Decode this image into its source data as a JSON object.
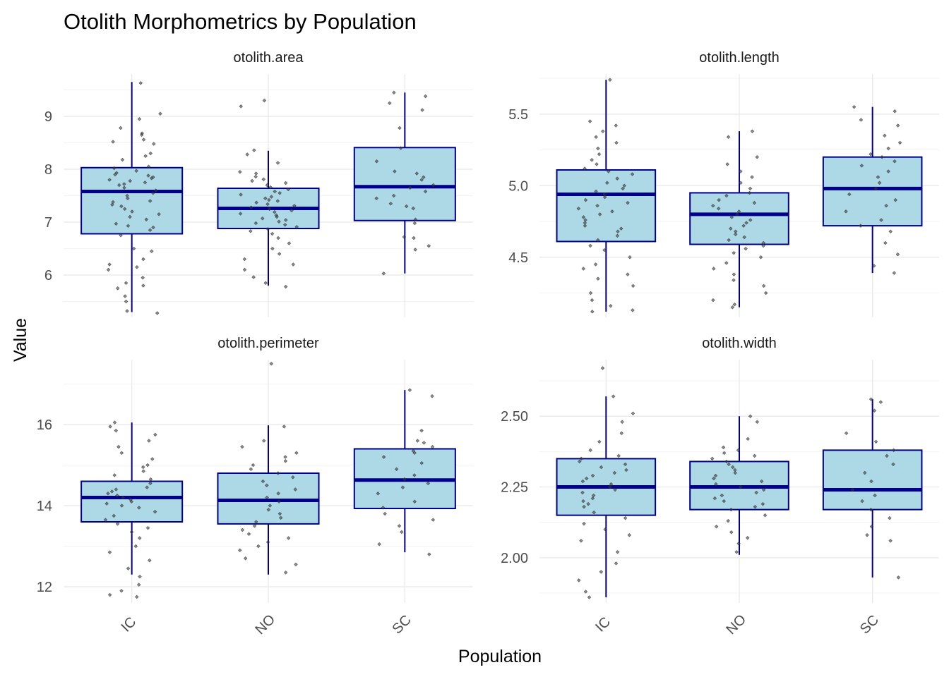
{
  "chart_data": {
    "type": "boxplot",
    "title": "Otolith Morphometrics by Population",
    "xlabel": "Population",
    "ylabel": "Value",
    "categories": [
      "IC",
      "NO",
      "SC"
    ],
    "grid": "on",
    "style": {
      "box_fill": "#add8e6",
      "box_stroke": "#00008b",
      "median_color": "#00008b",
      "point_color": "#333333",
      "grid_major": "#ebebeb",
      "grid_minor": "#f3f3f3"
    },
    "panels": [
      {
        "name": "otolith.area",
        "ylim": [
          5.2,
          9.8
        ],
        "yticks": [
          6,
          7,
          8,
          9
        ],
        "ytick_labels": [
          "6",
          "7",
          "8",
          "9"
        ],
        "boxes": [
          {
            "category": "IC",
            "min": 5.3,
            "q1": 6.78,
            "median": 7.58,
            "q3": 8.03,
            "max": 9.65
          },
          {
            "category": "NO",
            "min": 5.8,
            "q1": 6.88,
            "median": 7.26,
            "q3": 7.64,
            "max": 8.35
          },
          {
            "category": "SC",
            "min": 6.03,
            "q1": 7.03,
            "median": 7.67,
            "q3": 8.41,
            "max": 9.45
          }
        ],
        "points": {
          "IC": [
            9.63,
            8.78,
            8.95,
            9.05,
            8.68,
            8.65,
            8.52,
            8.48,
            8.56,
            8.3,
            8.25,
            8.18,
            8.05,
            8.02,
            7.97,
            7.93,
            7.9,
            7.88,
            7.85,
            7.83,
            7.8,
            7.78,
            7.75,
            7.72,
            7.7,
            7.65,
            7.6,
            7.55,
            7.5,
            7.45,
            7.4,
            7.38,
            7.33,
            7.3,
            7.25,
            7.2,
            7.15,
            7.1,
            7.05,
            6.97,
            6.93,
            6.9,
            6.85,
            6.75,
            6.5,
            6.45,
            6.3,
            6.2,
            6.15,
            6.1,
            5.95,
            5.85,
            5.8,
            5.75,
            5.6,
            5.5,
            5.32,
            5.28
          ],
          "NO": [
            9.3,
            9.19,
            8.36,
            8.28,
            8.12,
            7.95,
            7.92,
            7.86,
            7.81,
            7.78,
            7.74,
            7.7,
            7.66,
            7.62,
            7.58,
            7.55,
            7.52,
            7.48,
            7.45,
            7.42,
            7.4,
            7.37,
            7.34,
            7.31,
            7.28,
            7.25,
            7.22,
            7.19,
            7.16,
            7.13,
            7.1,
            7.07,
            7.04,
            7.01,
            6.98,
            6.95,
            6.91,
            6.87,
            6.83,
            6.78,
            6.7,
            6.6,
            6.5,
            6.4,
            6.3,
            6.2,
            6.1,
            5.96,
            5.85,
            5.78
          ],
          "SC": [
            9.45,
            9.38,
            9.25,
            9.12,
            8.78,
            8.4,
            8.15,
            7.96,
            7.92,
            7.85,
            7.8,
            7.7,
            7.65,
            7.58,
            7.5,
            7.45,
            7.35,
            7.3,
            7.26,
            7.05,
            6.98,
            6.72,
            6.7,
            6.55,
            6.48,
            6.03
          ]
        }
      },
      {
        "name": "otolith.length",
        "ylim": [
          4.08,
          5.78
        ],
        "yticks": [
          4.5,
          5.0,
          5.5
        ],
        "ytick_labels": [
          "4.5",
          "5.0",
          "5.5"
        ],
        "boxes": [
          {
            "category": "IC",
            "min": 4.12,
            "q1": 4.61,
            "median": 4.94,
            "q3": 5.11,
            "max": 5.74
          },
          {
            "category": "NO",
            "min": 4.15,
            "q1": 4.59,
            "median": 4.8,
            "q3": 4.95,
            "max": 5.38
          },
          {
            "category": "SC",
            "min": 4.39,
            "q1": 4.72,
            "median": 4.98,
            "q3": 5.2,
            "max": 5.55
          }
        ],
        "points": {
          "IC": [
            5.74,
            5.45,
            5.42,
            5.38,
            5.34,
            5.3,
            5.26,
            5.22,
            5.18,
            5.15,
            5.12,
            5.1,
            5.08,
            5.05,
            5.02,
            5.0,
            4.98,
            4.96,
            4.94,
            4.92,
            4.9,
            4.88,
            4.86,
            4.84,
            4.82,
            4.8,
            4.78,
            4.76,
            4.74,
            4.72,
            4.7,
            4.68,
            4.65,
            4.62,
            4.58,
            4.55,
            4.5,
            4.45,
            4.42,
            4.38,
            4.35,
            4.3,
            4.25,
            4.2,
            4.16,
            4.13,
            4.12
          ],
          "NO": [
            5.38,
            5.34,
            5.2,
            5.15,
            5.1,
            5.06,
            5.02,
            4.98,
            4.95,
            4.93,
            4.9,
            4.88,
            4.86,
            4.84,
            4.82,
            4.8,
            4.78,
            4.76,
            4.74,
            4.72,
            4.7,
            4.68,
            4.66,
            4.64,
            4.62,
            4.6,
            4.58,
            4.56,
            4.53,
            4.5,
            4.46,
            4.42,
            4.38,
            4.34,
            4.3,
            4.25,
            4.2,
            4.17,
            4.15
          ],
          "SC": [
            5.55,
            5.52,
            5.46,
            5.42,
            5.35,
            5.3,
            5.26,
            5.22,
            5.2,
            5.17,
            5.14,
            5.1,
            5.06,
            5.02,
            4.98,
            4.94,
            4.9,
            4.86,
            4.82,
            4.76,
            4.72,
            4.68,
            4.6,
            4.52,
            4.44,
            4.39
          ]
        }
      },
      {
        "name": "otolith.perimeter",
        "ylim": [
          11.6,
          17.6
        ],
        "yticks": [
          12,
          14,
          16
        ],
        "ytick_labels": [
          "12",
          "14",
          "16"
        ],
        "boxes": [
          {
            "category": "IC",
            "min": 12.3,
            "q1": 13.6,
            "median": 14.2,
            "q3": 14.6,
            "max": 16.05
          },
          {
            "category": "NO",
            "min": 12.3,
            "q1": 13.55,
            "median": 14.13,
            "q3": 14.8,
            "max": 15.98
          },
          {
            "category": "SC",
            "min": 12.85,
            "q1": 13.93,
            "median": 14.63,
            "q3": 15.4,
            "max": 16.85
          }
        ],
        "points": {
          "IC": [
            16.05,
            15.95,
            15.85,
            15.75,
            15.6,
            15.45,
            15.3,
            15.15,
            15.0,
            14.95,
            14.85,
            14.75,
            14.65,
            14.55,
            14.45,
            14.4,
            14.35,
            14.3,
            14.25,
            14.2,
            14.15,
            14.1,
            14.05,
            14.0,
            13.95,
            13.85,
            13.75,
            13.65,
            13.55,
            13.45,
            13.35,
            13.2,
            13.0,
            12.85,
            12.65,
            12.45,
            12.25,
            12.05,
            11.9,
            11.8,
            11.75
          ],
          "NO": [
            17.5,
            15.95,
            15.6,
            15.45,
            15.3,
            15.2,
            15.1,
            15.0,
            14.9,
            14.8,
            14.7,
            14.6,
            14.5,
            14.4,
            14.3,
            14.2,
            14.1,
            14.0,
            13.9,
            13.8,
            13.7,
            13.6,
            13.5,
            13.4,
            13.3,
            13.2,
            13.1,
            13.0,
            12.9,
            12.7,
            12.55,
            12.35
          ],
          "SC": [
            16.85,
            16.7,
            15.85,
            15.6,
            15.55,
            15.45,
            15.35,
            15.3,
            15.2,
            15.05,
            14.9,
            14.75,
            14.65,
            14.55,
            14.45,
            14.3,
            14.1,
            13.95,
            13.8,
            13.65,
            13.5,
            13.35,
            13.05,
            12.8
          ]
        }
      },
      {
        "name": "otolith.width",
        "ylim": [
          1.84,
          2.7
        ],
        "yticks": [
          2.0,
          2.25,
          2.5
        ],
        "ytick_labels": [
          "2.00",
          "2.25",
          "2.50"
        ],
        "boxes": [
          {
            "category": "IC",
            "min": 1.86,
            "q1": 2.15,
            "median": 2.25,
            "q3": 2.35,
            "max": 2.57
          },
          {
            "category": "NO",
            "min": 2.01,
            "q1": 2.17,
            "median": 2.25,
            "q3": 2.34,
            "max": 2.5
          },
          {
            "category": "SC",
            "min": 1.93,
            "q1": 2.17,
            "median": 2.24,
            "q3": 2.38,
            "max": 2.56
          }
        ],
        "points": {
          "IC": [
            2.67,
            2.57,
            2.51,
            2.48,
            2.44,
            2.41,
            2.38,
            2.36,
            2.35,
            2.34,
            2.33,
            2.32,
            2.31,
            2.3,
            2.29,
            2.28,
            2.27,
            2.26,
            2.25,
            2.24,
            2.23,
            2.22,
            2.21,
            2.2,
            2.19,
            2.18,
            2.16,
            2.14,
            2.12,
            2.1,
            2.08,
            2.06,
            2.02,
            1.98,
            1.95,
            1.92,
            1.88,
            1.86
          ],
          "NO": [
            2.5,
            2.48,
            2.42,
            2.39,
            2.38,
            2.37,
            2.36,
            2.35,
            2.34,
            2.33,
            2.32,
            2.31,
            2.3,
            2.29,
            2.28,
            2.27,
            2.26,
            2.25,
            2.24,
            2.23,
            2.22,
            2.21,
            2.2,
            2.19,
            2.18,
            2.17,
            2.15,
            2.13,
            2.11,
            2.09,
            2.07,
            2.05,
            2.02
          ],
          "SC": [
            2.56,
            2.55,
            2.52,
            2.44,
            2.41,
            2.38,
            2.36,
            2.33,
            2.3,
            2.27,
            2.24,
            2.22,
            2.2,
            2.17,
            2.14,
            2.11,
            2.08,
            2.06,
            1.93
          ]
        }
      }
    ]
  }
}
